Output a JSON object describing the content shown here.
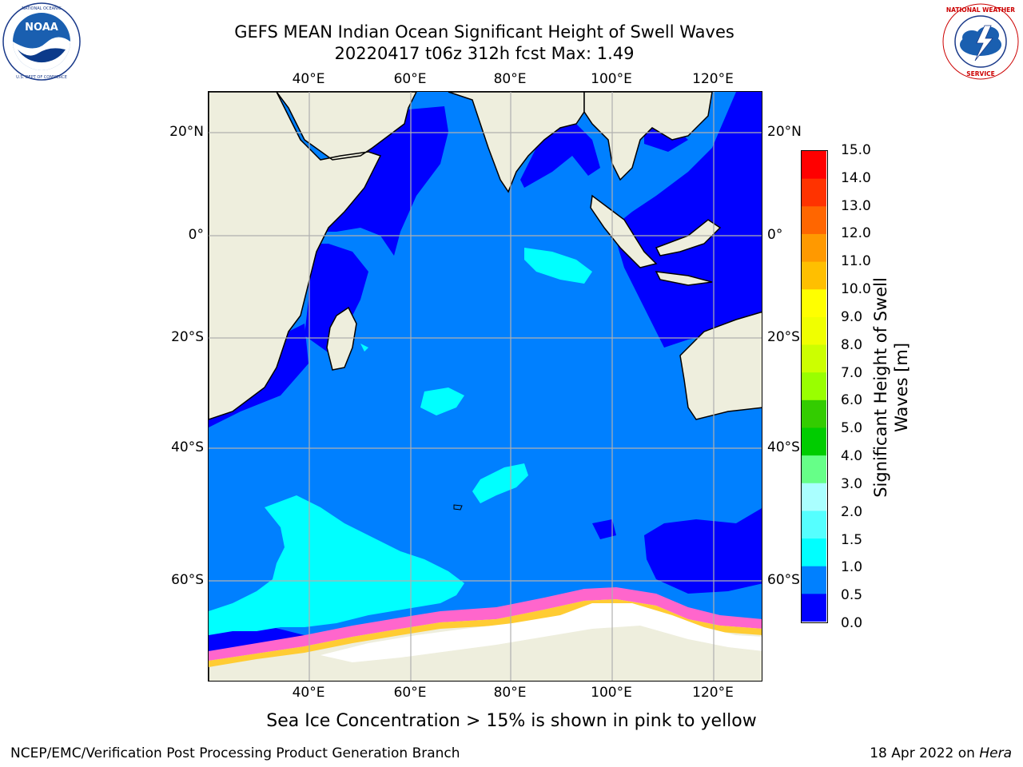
{
  "header": {
    "title_line1": "GEFS MEAN Indian Ocean Significant Height of Swell Waves",
    "title_line2": "20220417 t06z 312h fcst   Max: 1.49"
  },
  "logos": {
    "left": "noaa-logo",
    "right": "national-weather-service-logo",
    "left_text": "NATIONAL OCEANIC AND ATMOSPHERIC ADMINISTRATION · U.S. DEPARTMENT OF COMMERCE",
    "right_text": "NATIONAL WEATHER SERVICE"
  },
  "map": {
    "region": "Indian Ocean",
    "lon_ticks": [
      "40°E",
      "60°E",
      "80°E",
      "100°E",
      "120°E"
    ],
    "lat_ticks_left": [
      "20°N",
      "0°",
      "20°S",
      "40°S",
      "60°S"
    ],
    "lat_ticks_right": [
      "20°N",
      "0°",
      "20°S",
      "40°S",
      "60°S"
    ],
    "colors": {
      "land": "#eeeedd",
      "ocean_0_0_5": "#0000ff",
      "ocean_0_5_1_0": "#0080ff",
      "ocean_1_0_1_5": "#00ffff",
      "sea_ice_low": "#ff66cc",
      "sea_ice_high": "#ffcc00",
      "grid": "#b0b0b0"
    }
  },
  "colorbar": {
    "title_line1": "Significant Height of Swell",
    "title_line2": "Waves [m]",
    "labels": [
      "15.0",
      "14.0",
      "13.0",
      "12.0",
      "11.0",
      "10.0",
      "9.0",
      "8.0",
      "7.0",
      "6.0",
      "5.0",
      "4.0",
      "3.0",
      "2.0",
      "1.5",
      "1.0",
      "0.5",
      "0.0"
    ],
    "colors": [
      "#ff0000",
      "#ff3300",
      "#ff6600",
      "#ff9900",
      "#ffbf00",
      "#ffff00",
      "#f0ff00",
      "#ccff00",
      "#99ff00",
      "#33cc00",
      "#00cc00",
      "#66ff88",
      "#aaffff",
      "#55ffff",
      "#00ffff",
      "#0080ff",
      "#0000ff"
    ]
  },
  "caption": "Sea Ice Concentration > 15% is shown in pink to yellow",
  "footer": {
    "left": "NCEP/EMC/Verification Post Processing Product Generation Branch",
    "right_prefix": "18 Apr 2022 on ",
    "right_host": "Hera"
  }
}
